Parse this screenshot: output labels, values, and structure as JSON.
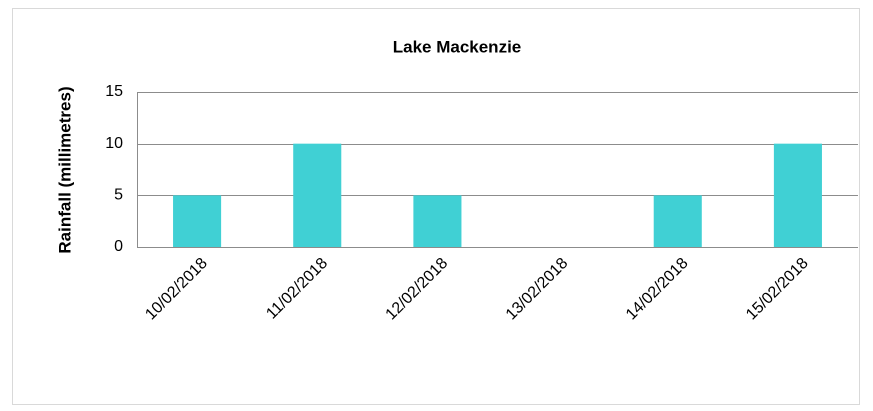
{
  "chart_data": {
    "type": "bar",
    "title": "Lake Mackenzie",
    "y_label": "Rainfall (millimetres)",
    "categories": [
      "10/02/2018",
      "11/02/2018",
      "12/02/2018",
      "13/02/2018",
      "14/02/2018",
      "15/02/2018"
    ],
    "values": [
      5,
      10,
      5,
      0,
      5,
      10
    ],
    "color": "#40d0d4",
    "ylim": [
      0,
      15
    ],
    "yticks": [
      0,
      5,
      10,
      15
    ],
    "grid": true
  }
}
